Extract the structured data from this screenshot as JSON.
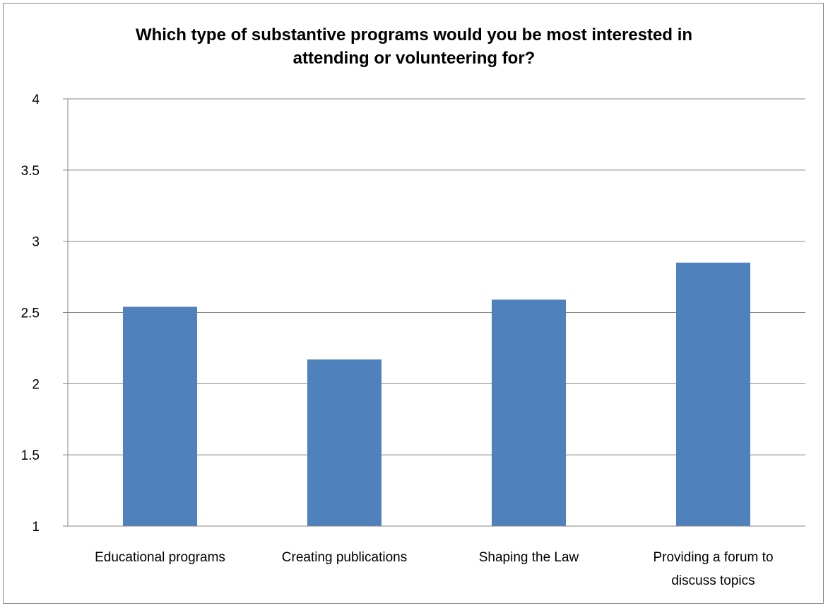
{
  "chart_data": {
    "type": "bar",
    "title": [
      "Which type of substantive programs would you be most interested in",
      "attending or volunteering for?"
    ],
    "categories": [
      [
        "Educational programs"
      ],
      [
        "Creating publications"
      ],
      [
        "Shaping the Law"
      ],
      [
        "Providing a forum to",
        "discuss topics"
      ]
    ],
    "values": [
      2.54,
      2.17,
      2.59,
      2.85
    ],
    "ylim": [
      1,
      4
    ],
    "ytick_step": 0.5,
    "yticks": [
      "1",
      "1.5",
      "2",
      "2.5",
      "3",
      "3.5",
      "4"
    ],
    "grid": true,
    "legend": "none",
    "colors": {
      "bar": "#4F81BD",
      "grid": "#868686",
      "frame": "#868686"
    }
  }
}
